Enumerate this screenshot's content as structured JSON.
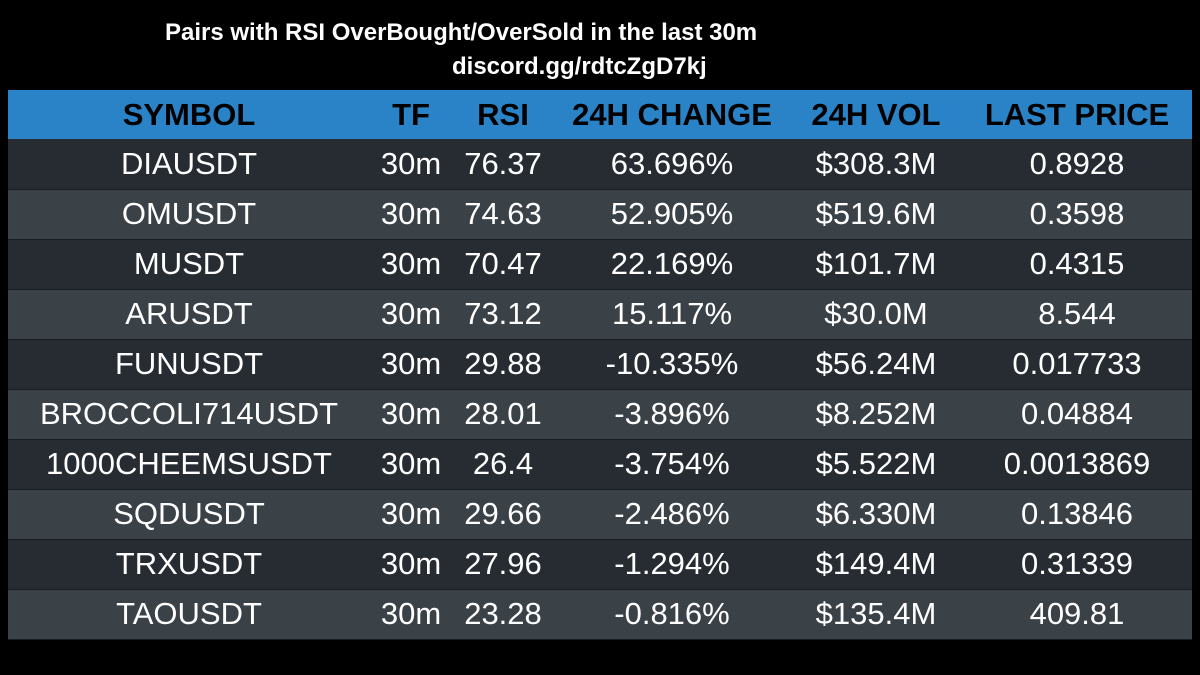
{
  "header": {
    "title": "Pairs with RSI OverBought/OverSold in the last 30m",
    "subtitle": "discord.gg/rdtcZgD7kj"
  },
  "colors": {
    "background": "#000000",
    "header_row": "#2a83c6",
    "row_dark": "#262c31",
    "row_light": "#3a4147",
    "text": "#ffffff"
  },
  "table": {
    "columns": [
      "SYMBOL",
      "TF",
      "RSI",
      "24H CHANGE",
      "24H VOL",
      "LAST PRICE"
    ],
    "rows": [
      [
        "DIAUSDT",
        "30m",
        "76.37",
        "63.696%",
        "$308.3M",
        "0.8928"
      ],
      [
        "OMUSDT",
        "30m",
        "74.63",
        "52.905%",
        "$519.6M",
        "0.3598"
      ],
      [
        "MUSDT",
        "30m",
        "70.47",
        "22.169%",
        "$101.7M",
        "0.4315"
      ],
      [
        "ARUSDT",
        "30m",
        "73.12",
        "15.117%",
        "$30.0M",
        "8.544"
      ],
      [
        "FUNUSDT",
        "30m",
        "29.88",
        "-10.335%",
        "$56.24M",
        "0.017733"
      ],
      [
        "BROCCOLI714USDT",
        "30m",
        "28.01",
        "-3.896%",
        "$8.252M",
        "0.04884"
      ],
      [
        "1000CHEEMSUSDT",
        "30m",
        "26.4",
        "-3.754%",
        "$5.522M",
        "0.0013869"
      ],
      [
        "SQDUSDT",
        "30m",
        "29.66",
        "-2.486%",
        "$6.330M",
        "0.13846"
      ],
      [
        "TRXUSDT",
        "30m",
        "27.96",
        "-1.294%",
        "$149.4M",
        "0.31339"
      ],
      [
        "TAOUSDT",
        "30m",
        "23.28",
        "-0.816%",
        "$135.4M",
        "409.81"
      ]
    ]
  }
}
